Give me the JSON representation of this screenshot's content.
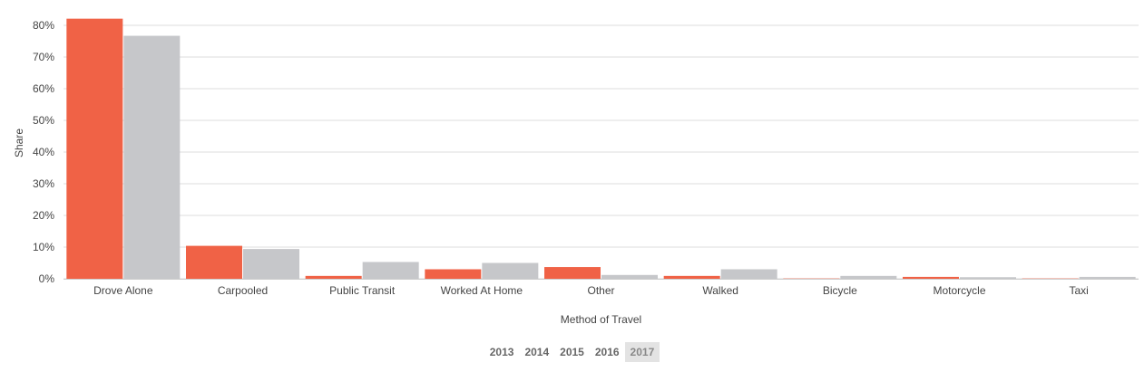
{
  "chart_data": {
    "type": "bar",
    "categories": [
      "Drove Alone",
      "Carpooled",
      "Public Transit",
      "Worked At Home",
      "Other",
      "Walked",
      "Bicycle",
      "Motorcycle",
      "Taxi"
    ],
    "series": [
      {
        "color": "#f06246",
        "values": [
          82.1,
          10.4,
          0.9,
          3.0,
          3.7,
          0.9,
          0.1,
          0.6,
          0.1
        ]
      },
      {
        "color": "#c6c7ca",
        "values": [
          76.7,
          9.4,
          5.3,
          5.0,
          1.2,
          3.0,
          0.9,
          0.5,
          0.6
        ]
      }
    ],
    "xlabel": "Method of Travel",
    "ylabel": "Share",
    "ylim": [
      0,
      80
    ],
    "yticks": [
      0,
      10,
      20,
      30,
      40,
      50,
      60,
      70,
      80
    ],
    "ytick_labels": [
      "0%",
      "10%",
      "20%",
      "30%",
      "40%",
      "50%",
      "60%",
      "70%",
      "80%"
    ],
    "grid": true
  },
  "year_selector": {
    "years": [
      "2013",
      "2014",
      "2015",
      "2016",
      "2017"
    ],
    "selected": "2017"
  }
}
